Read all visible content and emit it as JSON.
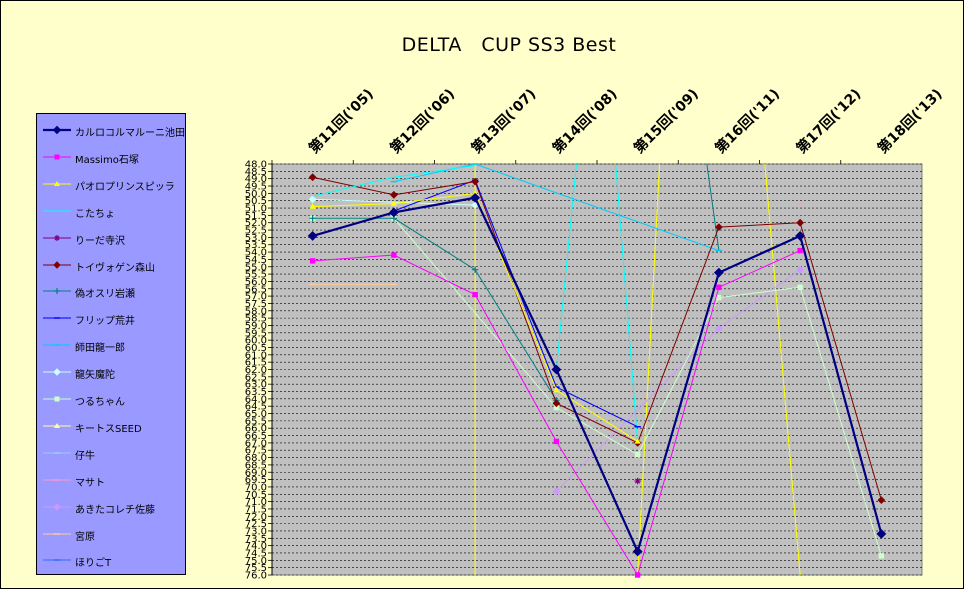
{
  "chart_data": {
    "type": "line",
    "title": "DELTA　CUP SS3 Best",
    "xlabel": "",
    "ylabel": "",
    "ylim": [
      48.0,
      76.0
    ],
    "y_reversed": true,
    "y_step": 0.5,
    "grid": true,
    "legend_position": "left",
    "categories": [
      "第11回('05)",
      "第12回('06)",
      "第13回('07)",
      "第14回('08)",
      "第15回('09)",
      "第16回('11)",
      "第17回('12)",
      "第18回('13)"
    ],
    "series": [
      {
        "name": "カルロコルマルーニ池田",
        "color": "#000080",
        "marker": "diamond",
        "width": 2.2,
        "values": [
          52.9,
          51.3,
          50.3,
          62.0,
          74.4,
          55.4,
          52.9,
          73.2
        ]
      },
      {
        "name": "Massimo石塚",
        "color": "#ff00ff",
        "marker": "square",
        "width": 1,
        "values": [
          54.6,
          54.2,
          56.9,
          66.9,
          76.0,
          56.4,
          53.9,
          null
        ]
      },
      {
        "name": "パオロプリンスピッラ",
        "color": "#ffff00",
        "marker": "triangle",
        "width": 1,
        "values": [
          50.9,
          50.7,
          50.0,
          63.4,
          66.9,
          null,
          null,
          null
        ]
      },
      {
        "name": "こたちょ",
        "color": "#00ffff",
        "marker": "none",
        "width": 1,
        "values": [
          50.2,
          48.9,
          48.1,
          null,
          null,
          null,
          null,
          null
        ]
      },
      {
        "name": "りーだ寺沢",
        "color": "#800080",
        "marker": "star",
        "width": 1,
        "values": [
          null,
          null,
          null,
          null,
          69.6,
          null,
          null,
          null
        ]
      },
      {
        "name": "トイヴォゲン森山",
        "color": "#800000",
        "marker": "diamond",
        "width": 1,
        "values": [
          48.9,
          50.1,
          49.2,
          64.3,
          67.0,
          52.3,
          52.0,
          70.9
        ]
      },
      {
        "name": "偽オスリ岩瀬",
        "color": "#008080",
        "marker": "plus",
        "width": 1,
        "values": [
          51.7,
          51.7,
          55.2,
          64.1,
          null,
          null,
          null,
          null
        ]
      },
      {
        "name": "フリップ荒井",
        "color": "#0000ff",
        "marker": "dash",
        "width": 1,
        "values": [
          null,
          51.2,
          49.1,
          63.2,
          65.9,
          null,
          null,
          null
        ]
      },
      {
        "name": "師田龍一郎",
        "color": "#00ccff",
        "marker": "dash",
        "width": 1,
        "values": [
          null,
          49.2,
          48.0,
          null,
          null,
          53.9,
          null,
          null
        ]
      },
      {
        "name": "龍矢魔陀",
        "color": "#ccffff",
        "marker": "diamond",
        "width": 1,
        "values": [
          50.4,
          null,
          50.8,
          null,
          null,
          null,
          null,
          null
        ]
      },
      {
        "name": "つるちゃん",
        "color": "#ccffcc",
        "marker": "square",
        "width": 1,
        "values": [
          51.7,
          51.7,
          null,
          64.6,
          67.8,
          57.1,
          56.4,
          74.7
        ]
      },
      {
        "name": "キートスSEED",
        "color": "#ffff99",
        "marker": "triangle",
        "width": 1,
        "values": [
          null,
          null,
          null,
          null,
          null,
          null,
          null,
          null
        ]
      },
      {
        "name": "仔牛",
        "color": "#99ccff",
        "marker": "dash",
        "width": 1,
        "values": [
          null,
          null,
          null,
          null,
          null,
          null,
          null,
          null
        ]
      },
      {
        "name": "マサト",
        "color": "#ff99cc",
        "marker": "dash",
        "width": 1,
        "values": [
          null,
          null,
          null,
          null,
          null,
          null,
          50.7,
          null
        ]
      },
      {
        "name": "あきたコレチ佐藤",
        "color": "#cc99ff",
        "marker": "diamond",
        "width": 1,
        "values": [
          null,
          null,
          null,
          70.3,
          null,
          59.2,
          55.2,
          null
        ]
      },
      {
        "name": "宮原",
        "color": "#ffcc99",
        "marker": "dash",
        "width": 1,
        "values": [
          56.2,
          56.2,
          null,
          null,
          null,
          null,
          null,
          null
        ]
      },
      {
        "name": "ほりごT",
        "color": "#3366ff",
        "marker": "dash",
        "width": 1,
        "values": [
          null,
          null,
          null,
          null,
          null,
          null,
          null,
          null
        ]
      }
    ]
  }
}
